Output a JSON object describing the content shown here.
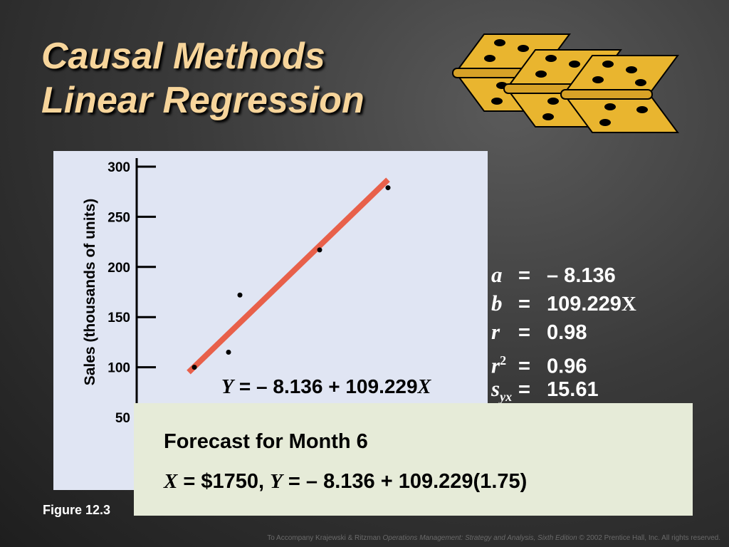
{
  "title": {
    "line1": "Causal Methods",
    "line2": "Linear Regression"
  },
  "chart_data": {
    "type": "scatter",
    "ylabel": "Sales (thousands of units)",
    "y_ticks": [
      "300",
      "250",
      "200",
      "150",
      "100",
      "50"
    ],
    "ylim": [
      50,
      300
    ],
    "points": [
      {
        "x": 1.0,
        "y": 100
      },
      {
        "x": 1.3,
        "y": 115
      },
      {
        "x": 1.4,
        "y": 172
      },
      {
        "x": 2.1,
        "y": 217
      },
      {
        "x": 2.7,
        "y": 279
      }
    ],
    "regression_line": {
      "x": [
        0.95,
        2.7
      ],
      "y": [
        95,
        287
      ]
    },
    "equation": {
      "y_var": "Y",
      "equals_text": " = – 8.136 + 109.229",
      "x_var": "X"
    },
    "colors": {
      "line": "#e8604a",
      "points": "#000000"
    }
  },
  "stats": [
    {
      "symbol": "a",
      "sup": "",
      "sub": "",
      "eq": "=",
      "value": "– 8.136",
      "suffix": ""
    },
    {
      "symbol": "b",
      "sup": "",
      "sub": "",
      "eq": "=",
      "value": "109.229",
      "suffix": "X"
    },
    {
      "symbol": "r",
      "sup": "",
      "sub": "",
      "eq": "=",
      "value": "0.98",
      "suffix": ""
    },
    {
      "symbol": "r",
      "sup": "2",
      "sub": "",
      "eq": "=",
      "value": "0.96",
      "suffix": ""
    },
    {
      "symbol": "s",
      "sup": "",
      "sub": "yx",
      "eq": "=",
      "value": "15.61",
      "suffix": ""
    }
  ],
  "forecast": {
    "title": "Forecast for Month 6",
    "x_var": "X",
    "part1": " = $1750, ",
    "y_var": "Y",
    "part2": " = – 8.136 + 109.229(1.75)"
  },
  "figure_label": "Figure 12.3",
  "footer": {
    "prefix": "To Accompany Krajewski & Ritzman ",
    "book": "Operations Management: Strategy and Analysis, Sixth Edition",
    "suffix": " © 2002 Prentice Hall, Inc. All rights reserved."
  }
}
